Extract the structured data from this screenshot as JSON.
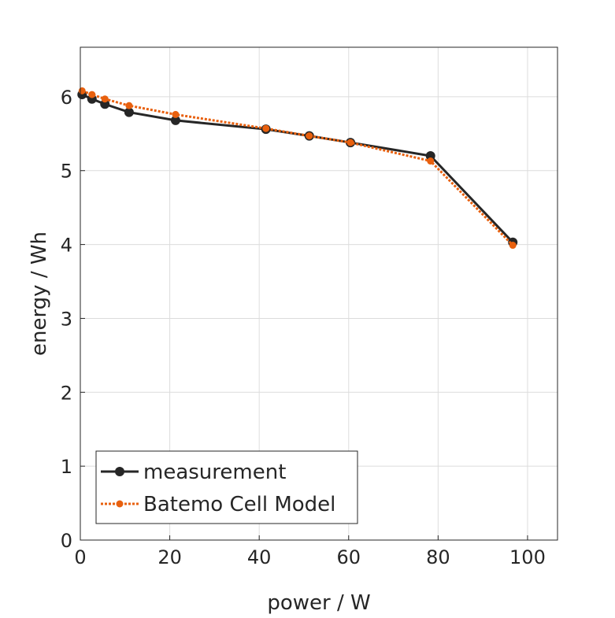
{
  "chart_data": {
    "type": "line",
    "title": "",
    "xlabel": "power / W",
    "ylabel": "energy / Wh",
    "xlim": [
      0,
      106.7
    ],
    "ylim": [
      0,
      6.67
    ],
    "xticks": [
      0,
      20,
      40,
      60,
      80,
      100
    ],
    "yticks": [
      0,
      1,
      2,
      3,
      4,
      5,
      6
    ],
    "grid": true,
    "legend_placement": "bottom-left",
    "series": [
      {
        "name": "measurement",
        "color": "#262626",
        "style": "solid",
        "x": [
          0.4,
          2.6,
          5.5,
          10.9,
          21.3,
          41.5,
          51.2,
          60.4,
          78.3,
          96.7
        ],
        "y": [
          6.03,
          5.97,
          5.9,
          5.79,
          5.68,
          5.56,
          5.47,
          5.38,
          5.2,
          4.03
        ]
      },
      {
        "name": "Batemo Cell Model",
        "color": "#E8600E",
        "style": "dotted",
        "x": [
          0.4,
          2.6,
          5.5,
          10.9,
          21.3,
          41.5,
          51.2,
          60.4,
          78.3,
          96.7
        ],
        "y": [
          6.08,
          6.03,
          5.97,
          5.88,
          5.76,
          5.57,
          5.47,
          5.38,
          5.13,
          3.99
        ]
      }
    ]
  }
}
